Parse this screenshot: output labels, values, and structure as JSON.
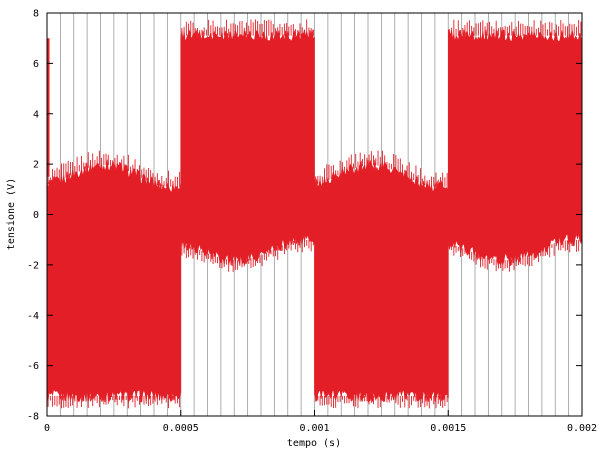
{
  "chart_data": {
    "type": "line",
    "xlabel": "tempo (s)",
    "ylabel": "tensione (V)",
    "xlim": [
      0,
      0.002
    ],
    "ylim": [
      -8,
      8
    ],
    "x_ticks": [
      0,
      0.0005,
      0.001,
      0.0015,
      0.002
    ],
    "x_tick_labels": [
      "0",
      "0.0005",
      "0.001",
      "0.0015",
      "0.002"
    ],
    "y_ticks": [
      -8,
      -6,
      -4,
      -2,
      0,
      2,
      4,
      6,
      8
    ],
    "y_tick_labels": [
      "-8",
      "-6",
      "-4",
      "-2",
      "0",
      "2",
      "4",
      "6",
      "8"
    ],
    "grid": "vertical",
    "vertical_gridline_count": 40,
    "series": [
      {
        "color": "#e41e26",
        "segments": [
          {
            "x_start": 0,
            "x_end": 0.0005,
            "upper_envelope": [
              1.2,
              2.0,
              1.1
            ],
            "lower_envelope": -7.2
          },
          {
            "x_start": 0.0005,
            "x_end": 0.001,
            "upper_envelope": 7.1,
            "lower_envelope": [
              -1.2,
              -1.7,
              -1.0
            ]
          },
          {
            "x_start": 0.001,
            "x_end": 0.0015,
            "upper_envelope": [
              1.2,
              2.0,
              1.1
            ],
            "lower_envelope": -7.2
          },
          {
            "x_start": 0.0015,
            "x_end": 0.002,
            "upper_envelope": 7.1,
            "lower_envelope": [
              -1.2,
              -1.7,
              -1.0
            ]
          }
        ]
      }
    ]
  }
}
